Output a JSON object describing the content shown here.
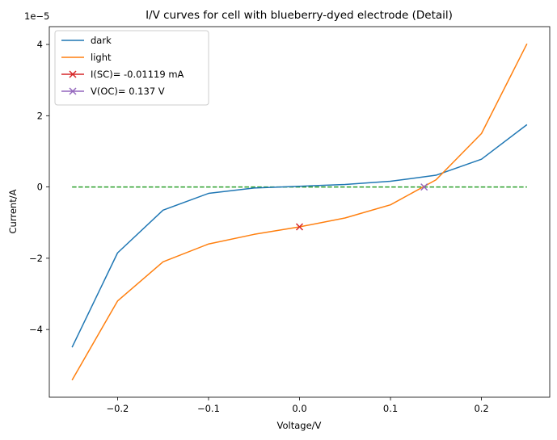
{
  "chart_data": {
    "type": "line",
    "title": "I/V curves for cell with blueberry-dyed electrode (Detail)",
    "xlabel": "Voltage/V",
    "ylabel": "Current/A",
    "y_offset_label": "1e−5",
    "xlim": [
      -0.275,
      0.275
    ],
    "ylim": [
      -5.9e-05,
      4.5e-05
    ],
    "x_ticks": [
      -0.2,
      -0.1,
      0.0,
      0.1,
      0.2
    ],
    "x_tick_labels": [
      "−0.2",
      "−0.1",
      "0.0",
      "0.1",
      "0.2"
    ],
    "y_ticks": [
      -4e-05,
      -2e-05,
      0,
      2e-05,
      4e-05
    ],
    "y_tick_labels": [
      "−4",
      "−2",
      "0",
      "2",
      "4"
    ],
    "grid": false,
    "legend_position": "top-left",
    "series": [
      {
        "name": "dark",
        "color": "#1f77b4",
        "style": "solid",
        "x": [
          -0.25,
          -0.2,
          -0.15,
          -0.1,
          -0.05,
          0.0,
          0.05,
          0.1,
          0.15,
          0.2,
          0.25
        ],
        "y": [
          -4.5e-05,
          -1.85e-05,
          -6.5e-06,
          -1.8e-06,
          -3e-07,
          2e-07,
          7e-07,
          1.6e-06,
          3.3e-06,
          7.8e-06,
          1.75e-05
        ]
      },
      {
        "name": "light",
        "color": "#ff7f0e",
        "style": "solid",
        "x": [
          -0.25,
          -0.2,
          -0.15,
          -0.1,
          -0.05,
          0.0,
          0.05,
          0.1,
          0.15,
          0.2,
          0.25
        ],
        "y": [
          -5.42e-05,
          -3.2e-05,
          -2.1e-05,
          -1.6e-05,
          -1.33e-05,
          -1.12e-05,
          -8.7e-06,
          -5e-06,
          2e-06,
          1.5e-05,
          4.02e-05
        ]
      },
      {
        "name": "I(SC)= -0.01119 mA",
        "color": "#d62728",
        "style": "marker",
        "marker": "x",
        "x": [
          0.0
        ],
        "y": [
          -1.119e-05
        ]
      },
      {
        "name": "V(OC)= 0.137 V",
        "color": "#9467bd",
        "style": "marker",
        "marker": "x",
        "x": [
          0.137
        ],
        "y": [
          0
        ]
      },
      {
        "color": "#2ca02c",
        "style": "dashed",
        "x": [
          -0.25,
          0.25
        ],
        "y": [
          0,
          0
        ]
      }
    ]
  }
}
